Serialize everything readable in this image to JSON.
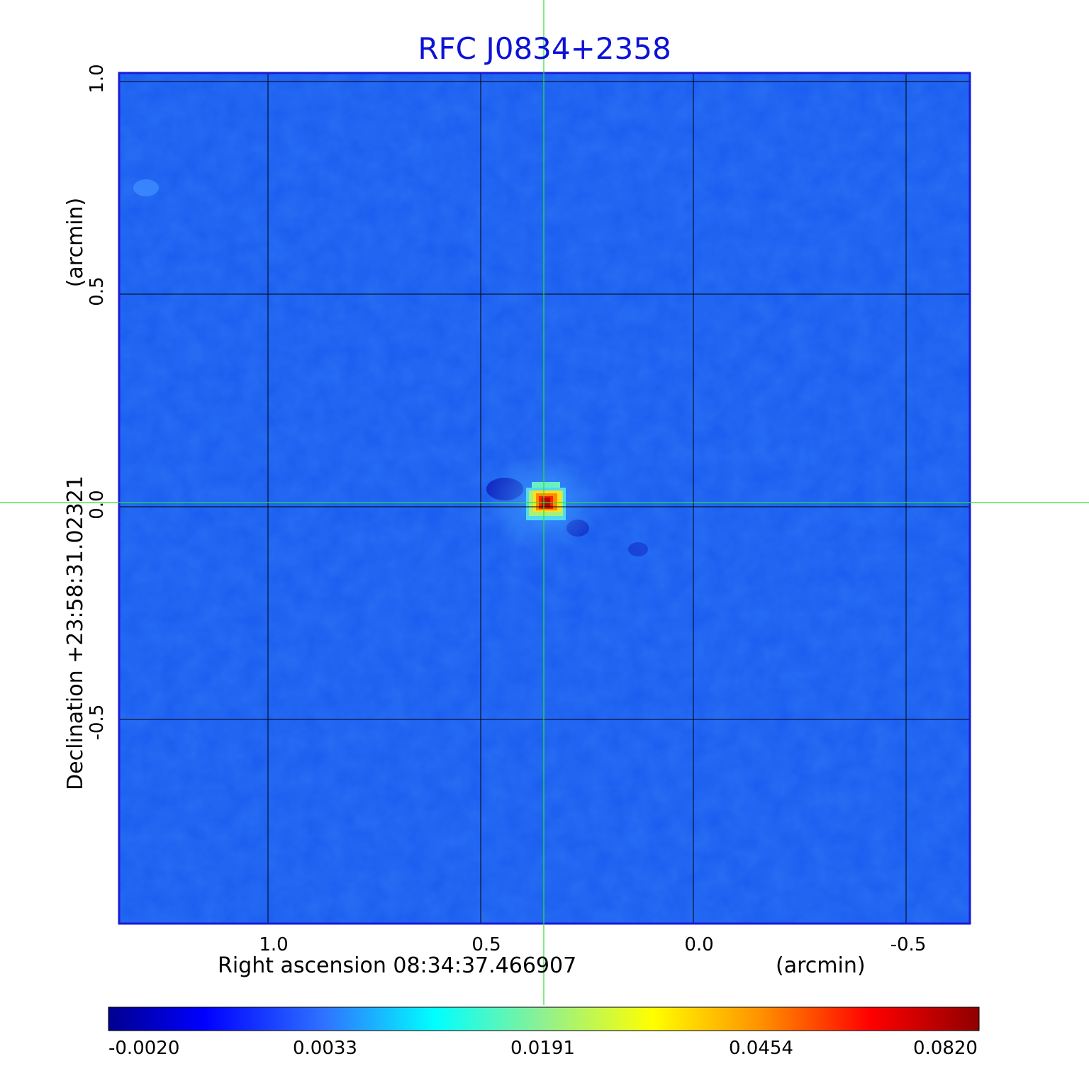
{
  "chart_data": {
    "type": "heatmap",
    "title": "RFC J0834+2358",
    "xlabel": "Right ascension  08:34:37.466907",
    "xunit": "(arcmin)",
    "ylabel": "Declination  +23:58:31.02321",
    "yunit": "(arcmin)",
    "xlim": [
      1.35,
      -0.65
    ],
    "ylim": [
      -0.98,
      1.02
    ],
    "x_ticks": [
      "1.0",
      "0.5",
      "0.0",
      "-0.5"
    ],
    "x_tick_values": [
      1.0,
      0.5,
      0.0,
      -0.5
    ],
    "y_ticks": [
      "-0.5",
      "0.0",
      "0.5",
      "1.0"
    ],
    "y_tick_values": [
      -0.5,
      0.0,
      0.5,
      1.0
    ],
    "grid": true,
    "crosshair": [
      0.355,
      0.0
    ],
    "source_peak": {
      "x": 0.355,
      "y": 0.0,
      "value": 0.082
    },
    "colormap": "jet",
    "colorbar_ticks": [
      "-0.0020",
      "0.0033",
      "0.0191",
      "0.0454",
      "0.0820"
    ],
    "colorbar_range": [
      -0.002,
      0.082
    ],
    "colors": {
      "title": "#0c12d6",
      "background_map": "#1a5cf0",
      "grid": "#000000",
      "crosshair": "#29e32f",
      "frame": "#1a1ad6"
    }
  }
}
